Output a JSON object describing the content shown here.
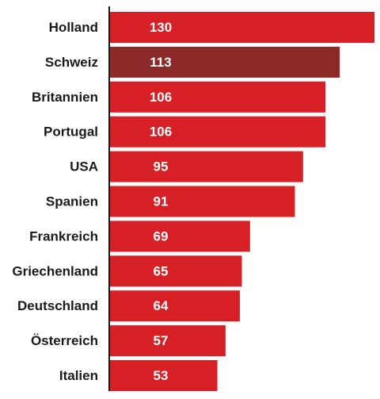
{
  "chart_data": {
    "type": "bar",
    "orientation": "horizontal",
    "categories": [
      "Holland",
      "Schweiz",
      "Britannien",
      "Portugal",
      "USA",
      "Spanien",
      "Frankreich",
      "Griechenland",
      "Deutschland",
      "Österreich",
      "Italien"
    ],
    "values": [
      130,
      113,
      106,
      106,
      95,
      91,
      69,
      65,
      64,
      57,
      53
    ],
    "value_labels": [
      "130",
      "113",
      "106",
      "106",
      "95",
      "91",
      "69",
      "65",
      "64",
      "57",
      "53"
    ],
    "highlight_index": 1,
    "xlim": [
      0,
      130
    ],
    "grid": false,
    "legend": "none",
    "colors": {
      "bar": "#d71f26",
      "highlight": "#8b2a28",
      "axis": "#1a1a1a"
    }
  }
}
